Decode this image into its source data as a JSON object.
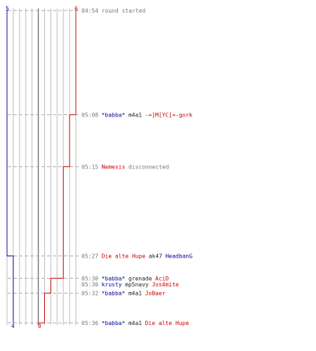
{
  "chart_data": {
    "type": "line",
    "title": "",
    "xlabel": "",
    "ylabel": "",
    "colors": {
      "blue": "#000099",
      "red": "#cc0000",
      "time": "#777777",
      "neutral": "#222222",
      "grid": "#bbbbbb",
      "zero": "#777777",
      "guide": "#aaaaaa"
    },
    "x_ticks": {
      "top_left": "5",
      "top_right": "6",
      "bottom_left": "4",
      "bottom_center": "0"
    },
    "series": [
      {
        "name": "",
        "color": "blue",
        "points": [
          [
            "04:54",
            -5
          ],
          [
            "05:27",
            -5
          ],
          [
            "05:27",
            -4
          ],
          [
            "05:36",
            -4
          ]
        ]
      },
      {
        "name": "",
        "color": "red",
        "points": [
          [
            "04:54",
            6
          ],
          [
            "05:08",
            6
          ],
          [
            "05:08",
            5
          ],
          [
            "05:15",
            5
          ],
          [
            "05:15",
            4
          ],
          [
            "05:30",
            4
          ],
          [
            "05:30",
            2
          ],
          [
            "05:32",
            2
          ],
          [
            "05:32",
            1
          ],
          [
            "05:36",
            1
          ],
          [
            "05:36",
            0
          ]
        ]
      }
    ],
    "events": [
      {
        "time": "04:54",
        "parts": [
          {
            "text": "round started",
            "color": "time"
          }
        ]
      },
      {
        "time": "05:08",
        "parts": [
          {
            "text": "*babba*",
            "color": "blue"
          },
          {
            "text": "m4a1",
            "color": "neutral"
          },
          {
            "text": "-=]M[YC[=-gork",
            "color": "red"
          }
        ]
      },
      {
        "time": "05:15",
        "parts": [
          {
            "text": "Nemesis",
            "color": "red"
          },
          {
            "text": "disconnected",
            "color": "time"
          }
        ]
      },
      {
        "time": "05:27",
        "parts": [
          {
            "text": "Die alte Hupe",
            "color": "red"
          },
          {
            "text": "ak47",
            "color": "neutral"
          },
          {
            "text": "HeadbanG",
            "color": "blue"
          }
        ]
      },
      {
        "time": "05:30",
        "parts": [
          {
            "text": "*babba*",
            "color": "blue"
          },
          {
            "text": "grenade",
            "color": "neutral"
          },
          {
            "text": "AciD",
            "color": "red"
          }
        ]
      },
      {
        "time": "05:30",
        "parts": [
          {
            "text": "krusty",
            "color": "blue"
          },
          {
            "text": "mp5navy",
            "color": "neutral"
          },
          {
            "text": "Jos4mite",
            "color": "red"
          }
        ]
      },
      {
        "time": "05:32",
        "parts": [
          {
            "text": "*babba*",
            "color": "blue"
          },
          {
            "text": "m4a1",
            "color": "neutral"
          },
          {
            "text": "JoBaer",
            "color": "red"
          }
        ]
      },
      {
        "time": "05:36",
        "parts": [
          {
            "text": "*babba*",
            "color": "blue"
          },
          {
            "text": "m4a1",
            "color": "neutral"
          },
          {
            "text": "Die alte Hupe",
            "color": "red"
          }
        ]
      }
    ]
  }
}
